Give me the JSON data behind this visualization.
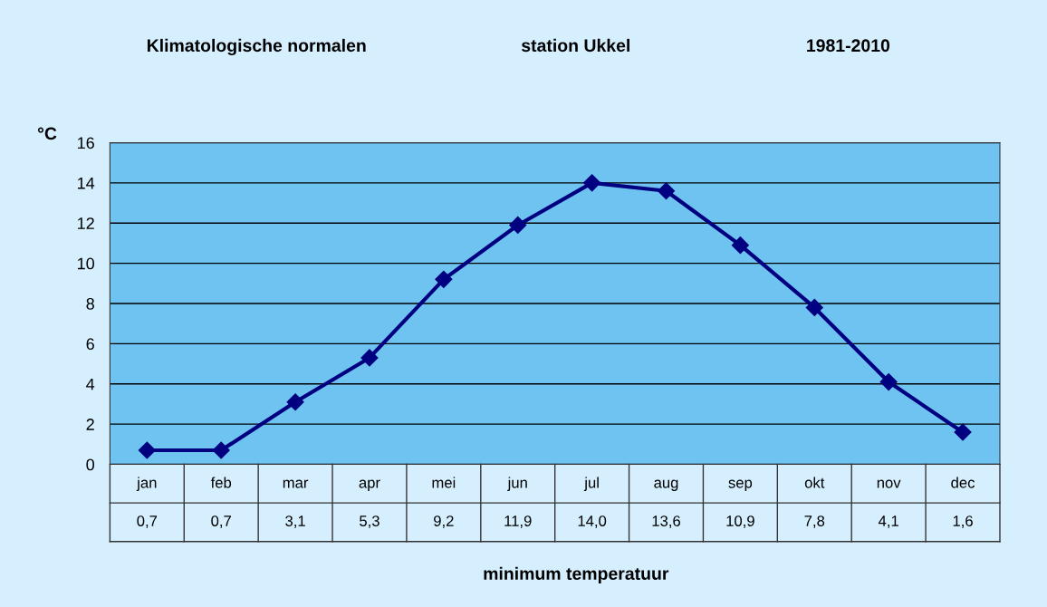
{
  "chart_data": {
    "type": "line",
    "title": "Klimatologische normalen",
    "subtitle": "station Ukkel",
    "annotations": [
      "1981-2010"
    ],
    "xlabel": "minimum temperatuur",
    "ylabel": "°C",
    "categories": [
      "jan",
      "feb",
      "mar",
      "apr",
      "mei",
      "jun",
      "jul",
      "aug",
      "sep",
      "okt",
      "nov",
      "dec"
    ],
    "series": [
      {
        "color": "#000080",
        "values": [
          0.7,
          0.7,
          3.1,
          5.3,
          9.2,
          11.9,
          14.0,
          13.6,
          10.9,
          7.8,
          4.1,
          1.6
        ],
        "value_labels": [
          "0,7",
          "0,7",
          "3,1",
          "5,3",
          "9,2",
          "11,9",
          "14,0",
          "13,6",
          "10,9",
          "7,8",
          "4,1",
          "1,6"
        ]
      }
    ],
    "ylim": [
      0,
      16
    ],
    "yticks": [
      0,
      2,
      4,
      6,
      8,
      10,
      12,
      14,
      16
    ],
    "grid": "y",
    "marker": "diamond",
    "line_style": "solid",
    "legend": false
  }
}
